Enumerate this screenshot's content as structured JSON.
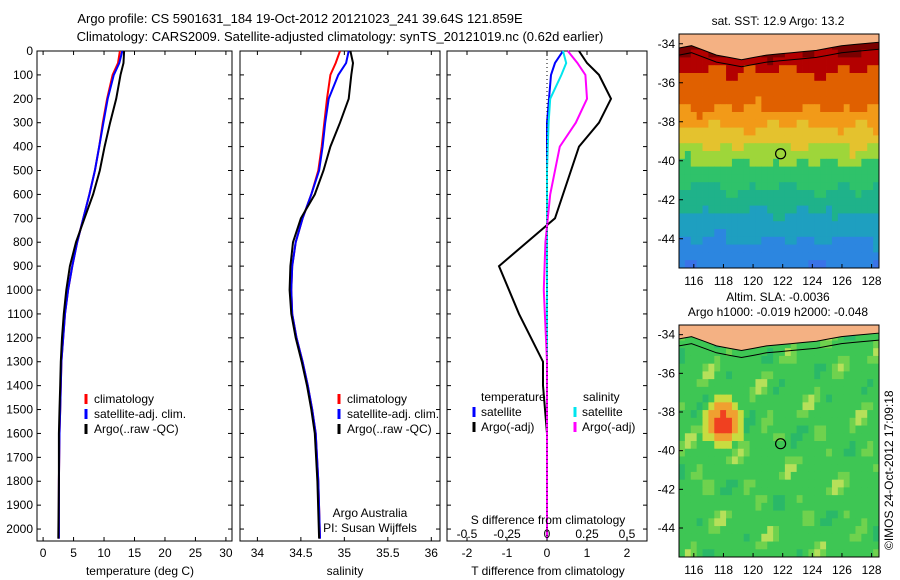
{
  "header": {
    "title_line1": "Argo profile: CS 5901631_184 19-Oct-2012 20121023_241 39.64S 121.859E",
    "title_line2": "Climatology: CARS2009. Satellite-adjusted climatology: synTS_20121019.nc (0.62d earlier)"
  },
  "colors": {
    "climatology": "#ff0000",
    "satellite": "#0000ff",
    "argo": "#000000",
    "salinity_satellite": "#00e5ee",
    "salinity_argo": "#ff00ff",
    "land": "#f4b183"
  },
  "chart_data": [
    {
      "type": "line",
      "id": "temperature-profile",
      "xlabel": "temperature (deg C)",
      "ylim": [
        2050,
        0
      ],
      "xlim": [
        -1,
        31
      ],
      "xticks": [
        0,
        5,
        10,
        15,
        20,
        25,
        30
      ],
      "yticks": [
        0,
        100,
        200,
        300,
        400,
        500,
        600,
        700,
        800,
        900,
        1000,
        1100,
        1200,
        1300,
        1400,
        1500,
        1600,
        1700,
        1800,
        1900,
        2000
      ],
      "legend": {
        "placement": "lower-right",
        "entries": [
          "climatology",
          "satellite-adj. clim.",
          "Argo(..raw -QC)"
        ]
      },
      "series": [
        {
          "name": "climatology",
          "color": "#ff0000",
          "x": [
            12.6,
            12.3,
            11.4,
            10.5,
            9.8,
            9.2,
            8.5,
            7.6,
            6.6,
            5.6,
            4.8,
            4.1,
            3.6,
            3.3,
            3.0,
            2.9,
            2.8,
            2.7,
            2.6,
            2.6
          ],
          "y": [
            0,
            50,
            100,
            200,
            300,
            400,
            500,
            600,
            700,
            800,
            900,
            1000,
            1100,
            1200,
            1300,
            1400,
            1500,
            1600,
            1800,
            2040
          ]
        },
        {
          "name": "satellite-adj. clim.",
          "color": "#0000ff",
          "x": [
            13.0,
            12.5,
            11.6,
            10.6,
            9.9,
            9.2,
            8.5,
            7.6,
            6.6,
            5.6,
            4.8,
            4.1,
            3.6,
            3.3,
            3.0,
            2.9,
            2.8,
            2.7,
            2.6,
            2.6
          ],
          "y": [
            0,
            50,
            100,
            200,
            300,
            400,
            500,
            600,
            700,
            800,
            900,
            1000,
            1100,
            1200,
            1300,
            1400,
            1500,
            1600,
            1800,
            2040
          ]
        },
        {
          "name": "Argo(..raw -QC)",
          "color": "#000000",
          "x": [
            13.3,
            13.2,
            12.7,
            12.0,
            11.0,
            10.1,
            9.3,
            8.2,
            6.8,
            5.4,
            4.4,
            3.8,
            3.4,
            3.1,
            2.9,
            2.8,
            2.7,
            2.6,
            2.6,
            2.5
          ],
          "y": [
            0,
            50,
            100,
            200,
            300,
            400,
            500,
            600,
            700,
            800,
            900,
            1000,
            1100,
            1200,
            1300,
            1400,
            1500,
            1600,
            1800,
            2040
          ]
        }
      ]
    },
    {
      "type": "line",
      "id": "salinity-profile",
      "xlabel": "salinity",
      "ylim": [
        2050,
        0
      ],
      "xlim": [
        33.8,
        36.1
      ],
      "xticks": [
        "34",
        "34.5",
        "35",
        "35.5",
        "36"
      ],
      "legend": {
        "placement": "lower-right",
        "entries": [
          "climatology",
          "satellite-adj. clim.",
          "Argo(..raw -QC)"
        ]
      },
      "annotation": {
        "line1": "Argo Australia",
        "line2": "PI: Susan Wijffels"
      },
      "series": [
        {
          "name": "climatology",
          "color": "#ff0000",
          "x": [
            34.95,
            34.9,
            34.84,
            34.8,
            34.77,
            34.74,
            34.7,
            34.62,
            34.52,
            34.44,
            34.4,
            34.39,
            34.4,
            34.45,
            34.52,
            34.58,
            34.63,
            34.67,
            34.7,
            34.72
          ],
          "y": [
            0,
            50,
            100,
            200,
            300,
            400,
            500,
            600,
            700,
            800,
            900,
            1000,
            1100,
            1200,
            1300,
            1400,
            1500,
            1600,
            1800,
            2040
          ]
        },
        {
          "name": "satellite-adj. clim.",
          "color": "#0000ff",
          "x": [
            35.05,
            35.02,
            34.93,
            34.82,
            34.78,
            34.75,
            34.71,
            34.62,
            34.52,
            34.44,
            34.4,
            34.39,
            34.4,
            34.45,
            34.52,
            34.58,
            34.63,
            34.67,
            34.7,
            34.72
          ],
          "y": [
            0,
            50,
            100,
            200,
            300,
            400,
            500,
            600,
            700,
            800,
            900,
            1000,
            1100,
            1200,
            1300,
            1400,
            1500,
            1600,
            1800,
            2040
          ]
        },
        {
          "name": "Argo(..raw -QC)",
          "color": "#000000",
          "x": [
            35.07,
            35.1,
            35.08,
            35.05,
            34.95,
            34.84,
            34.76,
            34.66,
            34.5,
            34.41,
            34.38,
            34.37,
            34.39,
            34.44,
            34.51,
            34.57,
            34.62,
            34.66,
            34.69,
            34.71
          ],
          "y": [
            0,
            50,
            100,
            200,
            300,
            400,
            500,
            600,
            700,
            800,
            900,
            1000,
            1100,
            1200,
            1300,
            1400,
            1500,
            1600,
            1800,
            2040
          ]
        }
      ]
    },
    {
      "type": "line",
      "id": "difference-profile",
      "xlabel": "T difference from climatology",
      "xlim": [
        -2.5,
        2.5
      ],
      "xticks": [
        "-2",
        "-1",
        "0",
        "1",
        "2"
      ],
      "top_axis_label": "S difference from climatology",
      "top_xticks": [
        "-0.5",
        "-0.25",
        "0",
        "0.25",
        "0.5"
      ],
      "legend": {
        "placement": "lower-center",
        "temperature_title": "temperature",
        "temperature_entries": [
          "satellite",
          "Argo(-adj)"
        ],
        "salinity_title": "salinity",
        "salinity_entries": [
          "satellite",
          "Argo(-adj)"
        ]
      },
      "series": [
        {
          "name": "temperature satellite",
          "color": "#0000ff",
          "x": [
            0.4,
            0.2,
            0.1,
            0.05,
            0,
            0,
            0,
            0,
            0,
            0,
            0,
            0,
            0,
            0,
            0
          ],
          "y": [
            0,
            50,
            100,
            200,
            300,
            500,
            700,
            900,
            1100,
            1300,
            1500,
            1600,
            1800,
            1900,
            2040
          ]
        },
        {
          "name": "temperature Argo(-adj)",
          "color": "#000000",
          "x": [
            0.8,
            1.0,
            1.3,
            1.6,
            1.3,
            0.8,
            0.2,
            -1.2,
            -0.7,
            -0.1,
            -0.1,
            0,
            0,
            0,
            0
          ],
          "y": [
            0,
            50,
            100,
            200,
            300,
            400,
            700,
            900,
            1100,
            1300,
            1400,
            1600,
            1800,
            1900,
            2040
          ]
        },
        {
          "name": "salinity satellite",
          "color": "#00e5ee",
          "x": [
            0.1,
            0.12,
            0.09,
            0.02,
            0.01,
            0,
            0,
            0,
            0,
            0,
            0
          ],
          "y": [
            0,
            50,
            100,
            200,
            300,
            500,
            800,
            1100,
            1400,
            1700,
            2040
          ]
        },
        {
          "name": "salinity Argo(-adj)",
          "color": "#ff00ff",
          "x": [
            0.13,
            0.19,
            0.24,
            0.25,
            0.18,
            0.08,
            0.02,
            -0.01,
            -0.02,
            0,
            0
          ],
          "y": [
            0,
            50,
            100,
            200,
            300,
            400,
            600,
            800,
            1000,
            1300,
            2040
          ]
        }
      ]
    },
    {
      "type": "heatmap",
      "id": "sst-map",
      "title": "sat. SST: 12.9  Argo: 13.2",
      "xticks": [
        "116",
        "118",
        "120",
        "122",
        "124",
        "126",
        "128"
      ],
      "yticks": [
        "-34",
        "-36",
        "-38",
        "-40",
        "-42",
        "-44"
      ],
      "xlim": [
        115,
        128.5
      ],
      "ylim": [
        -45.5,
        -33.5
      ],
      "marker": {
        "lon": 121.859,
        "lat": -39.64
      }
    },
    {
      "type": "heatmap",
      "id": "sla-map",
      "title_line1": "Altim. SLA: -0.0036",
      "title_line2": "Argo h1000: -0.019  h2000: -0.048",
      "xticks": [
        "116",
        "118",
        "120",
        "122",
        "124",
        "126",
        "128"
      ],
      "yticks": [
        "-34",
        "-36",
        "-38",
        "-40",
        "-42",
        "-44"
      ],
      "xlim": [
        115,
        128.5
      ],
      "ylim": [
        -45.5,
        -33.5
      ],
      "marker": {
        "lon": 121.859,
        "lat": -39.64
      }
    }
  ],
  "footer": {
    "vertical_label": "©IMOS 24-Oct-2012 17:09:18"
  }
}
